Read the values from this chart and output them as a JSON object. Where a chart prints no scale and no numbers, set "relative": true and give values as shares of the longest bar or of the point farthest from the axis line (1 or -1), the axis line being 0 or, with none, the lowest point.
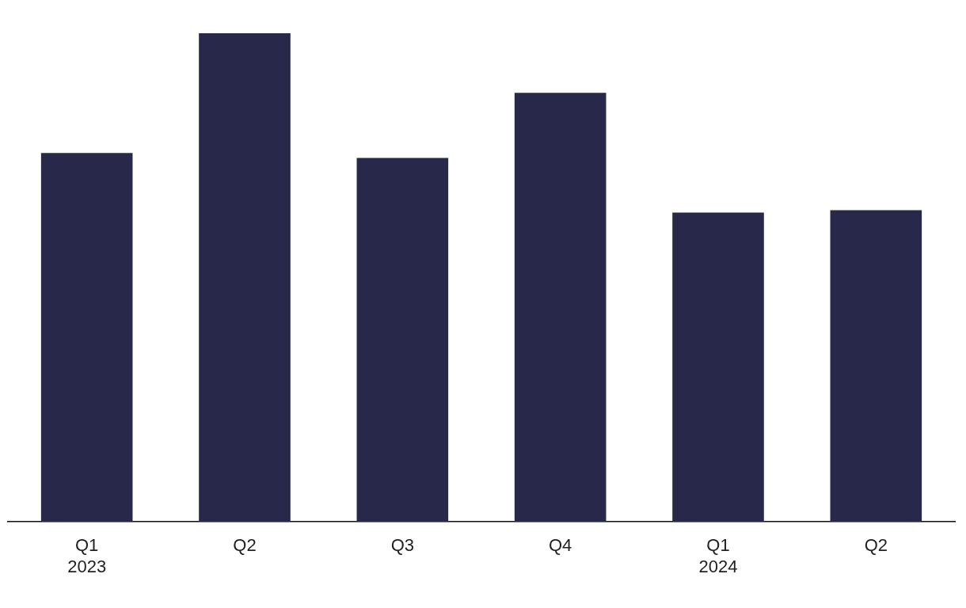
{
  "chart_data": {
    "type": "bar",
    "relative": true,
    "categories": [
      "Q1\n2023",
      "Q2",
      "Q3",
      "Q4",
      "Q1\n2024",
      "Q2"
    ],
    "values": [
      0.755,
      1,
      0.745,
      0.878,
      0.633,
      0.638
    ],
    "color": "#28284a",
    "grid": false,
    "legend": false
  }
}
